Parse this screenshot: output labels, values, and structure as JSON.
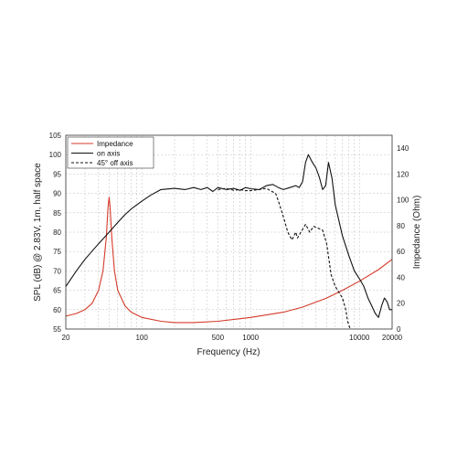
{
  "chart_data": {
    "type": "line",
    "title": "",
    "xlabel": "Frequency (Hz)",
    "ylabel_left": "SPL (dB) @ 2.83V, 1m, half space",
    "ylabel_right": "Impedance (Ohm)",
    "xscale": "log",
    "xlim": [
      20,
      20000
    ],
    "ylim_left": [
      55,
      105
    ],
    "ylim_right": [
      0,
      150
    ],
    "x_ticks": [
      20,
      100,
      500,
      1000,
      10000,
      20000
    ],
    "x_tick_labels": [
      "20",
      "100",
      "500",
      "1000",
      "10000",
      "20000"
    ],
    "y_left_ticks": [
      55,
      60,
      65,
      70,
      75,
      80,
      85,
      90,
      95,
      100,
      105
    ],
    "y_left_tick_labels": [
      "55",
      "60",
      "65",
      "70",
      "75",
      "80",
      "85",
      "90",
      "95",
      "100",
      "105"
    ],
    "y_right_ticks": [
      0,
      20,
      40,
      60,
      80,
      100,
      120,
      140
    ],
    "y_right_tick_labels": [
      "0",
      "20",
      "40",
      "60",
      "80",
      "100",
      "120",
      "140"
    ],
    "grid": true,
    "legend_position": "top-left",
    "series": [
      {
        "name": "Impedance",
        "axis": "right",
        "color": "#d43a2a",
        "style": "solid",
        "points": [
          [
            20,
            10
          ],
          [
            25,
            12
          ],
          [
            30,
            15
          ],
          [
            35,
            20
          ],
          [
            40,
            30
          ],
          [
            44,
            45
          ],
          [
            47,
            70
          ],
          [
            49,
            95
          ],
          [
            50,
            102
          ],
          [
            51,
            95
          ],
          [
            53,
            70
          ],
          [
            56,
            45
          ],
          [
            60,
            30
          ],
          [
            70,
            18
          ],
          [
            80,
            13
          ],
          [
            100,
            9
          ],
          [
            150,
            6
          ],
          [
            200,
            5
          ],
          [
            300,
            5
          ],
          [
            500,
            6
          ],
          [
            800,
            8
          ],
          [
            1000,
            9
          ],
          [
            2000,
            13
          ],
          [
            3000,
            17
          ],
          [
            5000,
            24
          ],
          [
            7000,
            30
          ],
          [
            10000,
            37
          ],
          [
            15000,
            46
          ],
          [
            20000,
            54
          ]
        ]
      },
      {
        "name": "on axis",
        "axis": "left",
        "color": "#111111",
        "style": "solid",
        "points": [
          [
            20,
            66
          ],
          [
            25,
            70
          ],
          [
            30,
            73
          ],
          [
            40,
            77
          ],
          [
            50,
            80
          ],
          [
            60,
            82.5
          ],
          [
            70,
            84.5
          ],
          [
            80,
            86
          ],
          [
            100,
            88
          ],
          [
            120,
            89.5
          ],
          [
            150,
            91
          ],
          [
            200,
            91.3
          ],
          [
            250,
            91
          ],
          [
            300,
            91.5
          ],
          [
            350,
            91
          ],
          [
            400,
            91.5
          ],
          [
            450,
            90.5
          ],
          [
            500,
            91.5
          ],
          [
            600,
            91
          ],
          [
            700,
            91.3
          ],
          [
            800,
            90.8
          ],
          [
            900,
            91.5
          ],
          [
            1000,
            91.2
          ],
          [
            1200,
            91
          ],
          [
            1400,
            92
          ],
          [
            1600,
            92.3
          ],
          [
            1800,
            91.5
          ],
          [
            2000,
            91
          ],
          [
            2300,
            91.5
          ],
          [
            2600,
            92
          ],
          [
            2800,
            91.5
          ],
          [
            3000,
            93
          ],
          [
            3200,
            98
          ],
          [
            3400,
            100
          ],
          [
            3700,
            98
          ],
          [
            4000,
            96.5
          ],
          [
            4300,
            94
          ],
          [
            4600,
            91
          ],
          [
            4900,
            92
          ],
          [
            5200,
            98
          ],
          [
            5600,
            94
          ],
          [
            6000,
            87
          ],
          [
            7000,
            79
          ],
          [
            8000,
            74
          ],
          [
            9000,
            70
          ],
          [
            10000,
            68
          ],
          [
            11000,
            66
          ],
          [
            12000,
            63
          ],
          [
            13000,
            61
          ],
          [
            14000,
            59
          ],
          [
            15000,
            58
          ],
          [
            16000,
            61
          ],
          [
            17000,
            63
          ],
          [
            18000,
            62
          ],
          [
            19000,
            60
          ],
          [
            20000,
            60
          ]
        ]
      },
      {
        "name": "45° off axis",
        "axis": "left",
        "color": "#111111",
        "style": "dashed",
        "points": [
          [
            500,
            91
          ],
          [
            600,
            91.3
          ],
          [
            700,
            90.8
          ],
          [
            800,
            91
          ],
          [
            900,
            90.7
          ],
          [
            1000,
            90.7
          ],
          [
            1200,
            91
          ],
          [
            1400,
            91.3
          ],
          [
            1500,
            90.8
          ],
          [
            1700,
            90
          ],
          [
            1800,
            88
          ],
          [
            2000,
            84
          ],
          [
            2200,
            80
          ],
          [
            2400,
            78
          ],
          [
            2600,
            80
          ],
          [
            2700,
            78.5
          ],
          [
            2900,
            80
          ],
          [
            3200,
            82
          ],
          [
            3500,
            80
          ],
          [
            3800,
            81.5
          ],
          [
            4200,
            81
          ],
          [
            4600,
            80.5
          ],
          [
            5000,
            77
          ],
          [
            5500,
            69
          ],
          [
            6000,
            66
          ],
          [
            7000,
            63
          ],
          [
            7500,
            60
          ],
          [
            7800,
            57
          ],
          [
            8200,
            55.2
          ]
        ]
      }
    ]
  }
}
